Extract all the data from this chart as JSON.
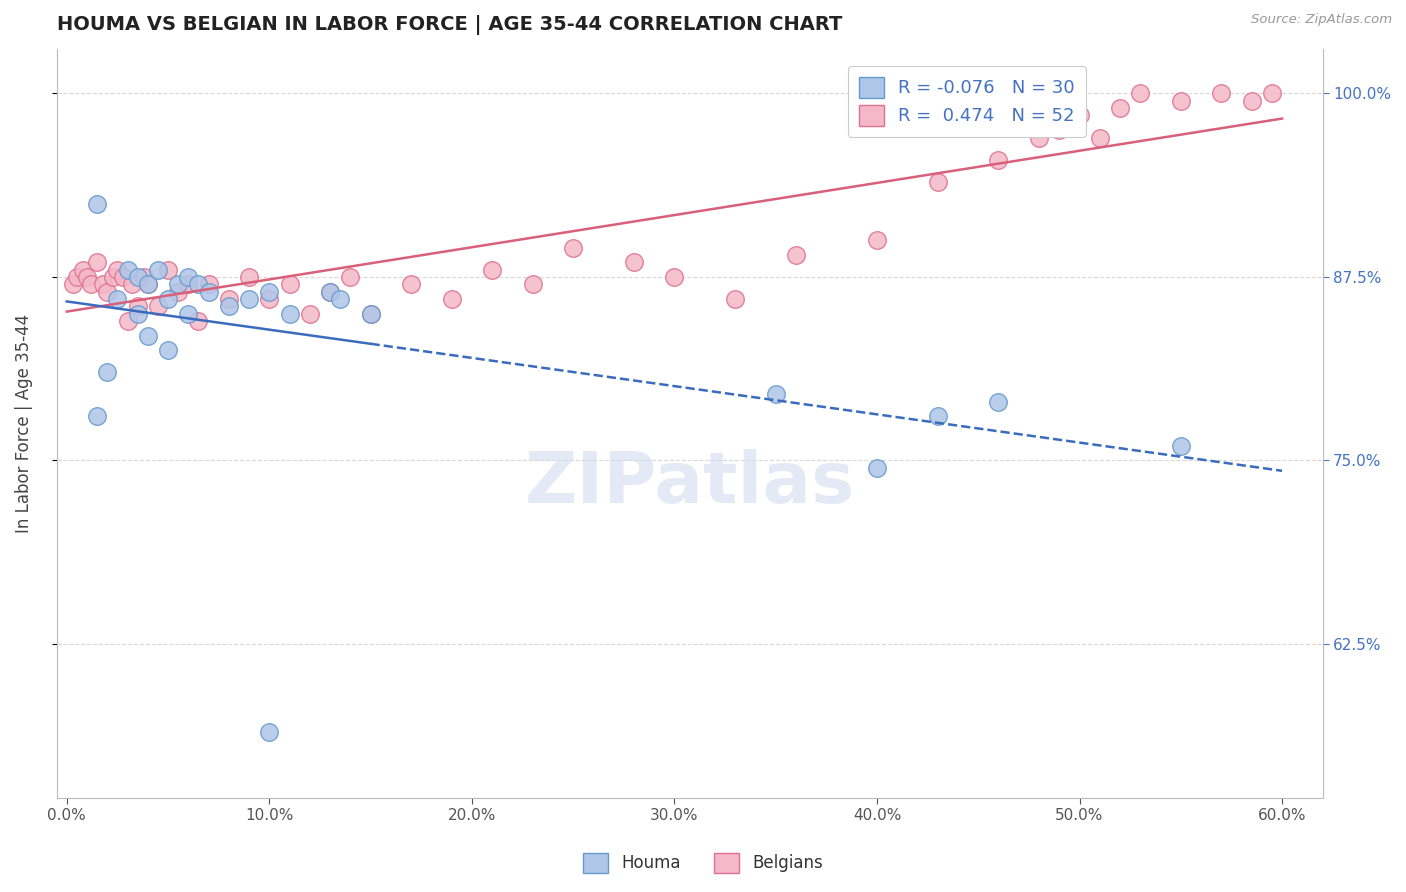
{
  "title": "HOUMA VS BELGIAN IN LABOR FORCE | AGE 35-44 CORRELATION CHART",
  "source": "Source: ZipAtlas.com",
  "ylabel": "In Labor Force | Age 35-44",
  "houma_R": -0.076,
  "houma_N": 30,
  "belgian_R": 0.474,
  "belgian_N": 52,
  "houma_color": "#aec6e8",
  "houma_edge": "#6699cc",
  "belgian_color": "#f4b8c8",
  "belgian_edge": "#e07090",
  "houma_line_color": "#3a6bbd",
  "belgian_line_color": "#d95f7a",
  "watermark": "ZIPatlas",
  "background_color": "#ffffff",
  "grid_color": "#d8d8d8",
  "houma_x": [
    1.5,
    1.5,
    2.0,
    2.5,
    3.0,
    3.5,
    3.5,
    4.0,
    4.0,
    4.5,
    5.0,
    5.0,
    5.5,
    6.0,
    6.0,
    6.5,
    7.0,
    8.0,
    9.0,
    10.0,
    11.0,
    13.0,
    13.5,
    15.0,
    35.0,
    40.0,
    43.0,
    46.0,
    55.0,
    10.0
  ],
  "houma_y": [
    92.5,
    78.0,
    81.0,
    86.0,
    88.0,
    87.5,
    85.0,
    87.0,
    83.5,
    88.0,
    86.0,
    82.5,
    87.0,
    87.5,
    85.0,
    87.0,
    86.5,
    85.5,
    86.0,
    86.5,
    85.0,
    86.5,
    86.0,
    85.0,
    79.5,
    74.5,
    78.0,
    79.0,
    76.0,
    56.5
  ],
  "belgian_x": [
    0.3,
    0.5,
    0.8,
    1.0,
    1.2,
    1.5,
    1.8,
    2.0,
    2.3,
    2.5,
    2.8,
    3.0,
    3.2,
    3.5,
    3.8,
    4.0,
    4.5,
    5.0,
    5.5,
    6.0,
    6.5,
    7.0,
    8.0,
    9.0,
    10.0,
    11.0,
    12.0,
    13.0,
    14.0,
    15.0,
    17.0,
    19.0,
    21.0,
    23.0,
    25.0,
    28.0,
    30.0,
    33.0,
    36.0,
    40.0,
    43.0,
    46.0,
    48.0,
    49.0,
    50.0,
    51.0,
    52.0,
    53.0,
    55.0,
    57.0,
    58.5,
    59.5
  ],
  "belgian_y": [
    87.0,
    87.5,
    88.0,
    87.5,
    87.0,
    88.5,
    87.0,
    86.5,
    87.5,
    88.0,
    87.5,
    84.5,
    87.0,
    85.5,
    87.5,
    87.0,
    85.5,
    88.0,
    86.5,
    87.0,
    84.5,
    87.0,
    86.0,
    87.5,
    86.0,
    87.0,
    85.0,
    86.5,
    87.5,
    85.0,
    87.0,
    86.0,
    88.0,
    87.0,
    89.5,
    88.5,
    87.5,
    86.0,
    89.0,
    90.0,
    94.0,
    95.5,
    97.0,
    97.5,
    98.5,
    97.0,
    99.0,
    100.0,
    99.5,
    100.0,
    99.5,
    100.0
  ],
  "xlim_left": -0.5,
  "xlim_right": 62.0,
  "ylim_bottom": 52.0,
  "ylim_top": 103.0,
  "ytick_vals": [
    62.5,
    75.0,
    87.5,
    100.0
  ],
  "ytick_labels": [
    "62.5%",
    "75.0%",
    "87.5%",
    "100.0%"
  ],
  "xtick_vals": [
    0,
    10,
    20,
    30,
    40,
    50,
    60
  ],
  "xtick_labels": [
    "0.0%",
    "10.0%",
    "20.0%",
    "30.0%",
    "40.0%",
    "50.0%",
    "60.0%"
  ]
}
